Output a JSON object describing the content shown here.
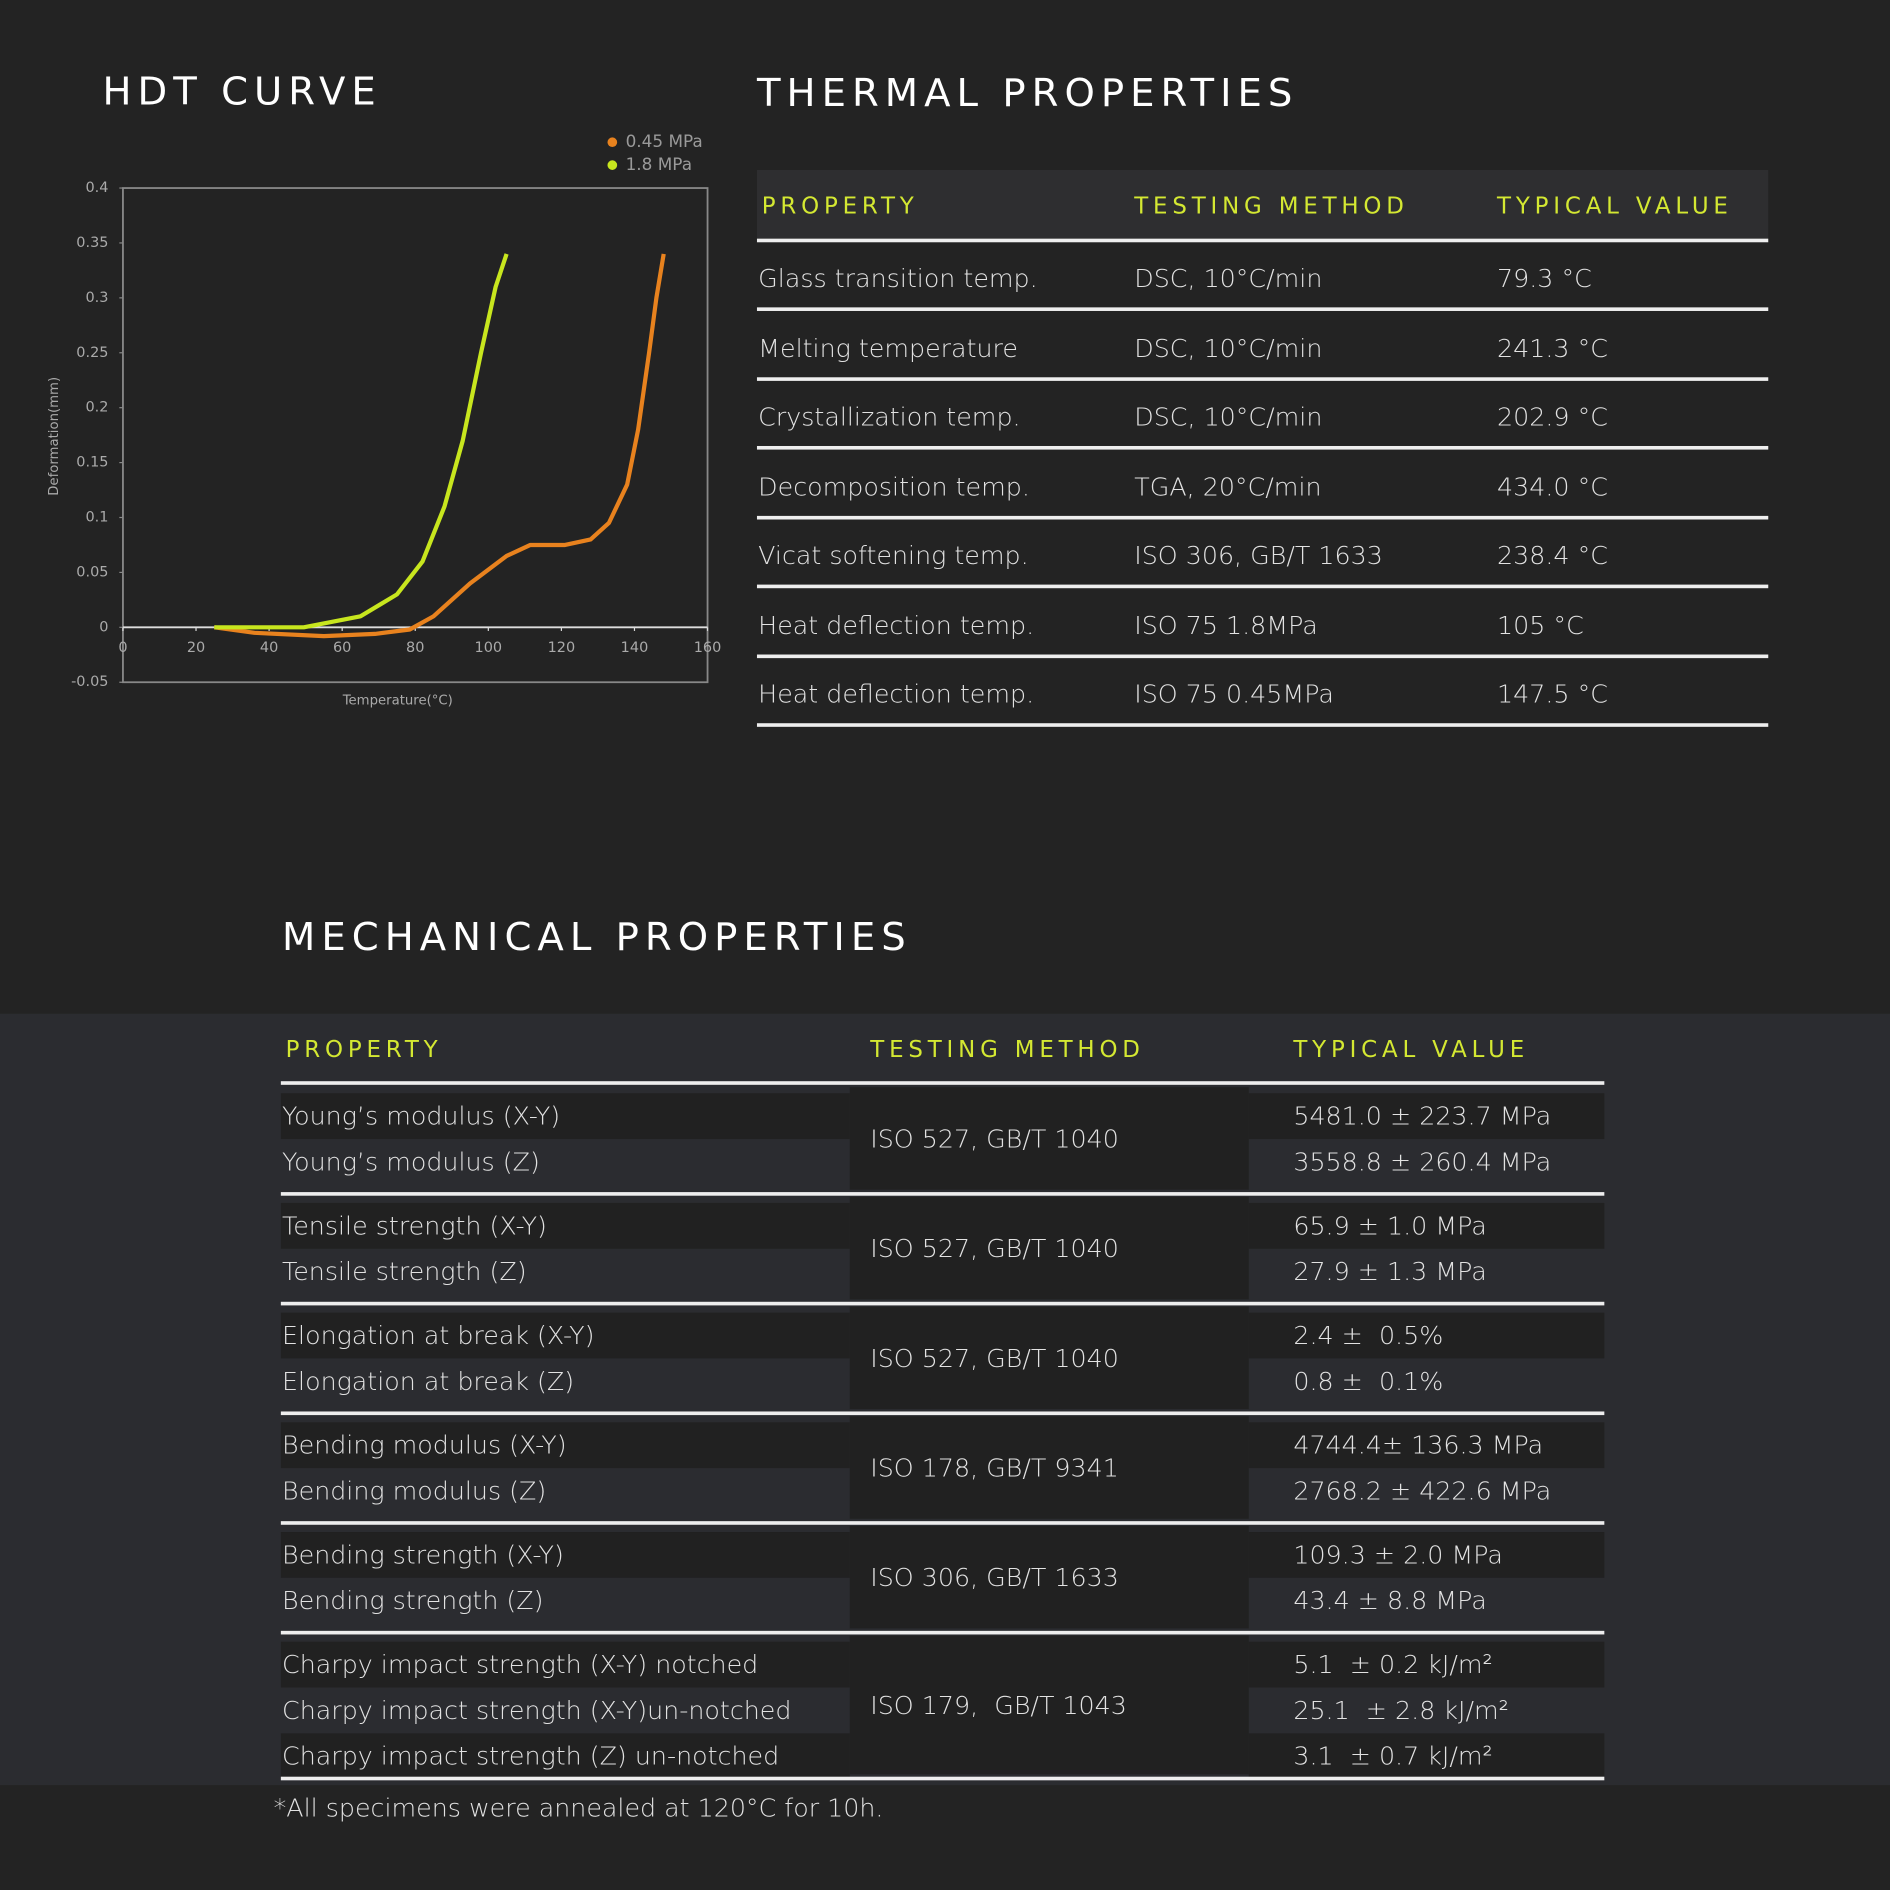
{
  "chart_data": {
    "type": "line",
    "title": "HDT CURVE",
    "x_label": "Temperature(°C)",
    "y_label": "Deformation(mm)",
    "xlim": [
      0,
      160
    ],
    "xticks": [
      0,
      20,
      40,
      60,
      80,
      100,
      120,
      140,
      160
    ],
    "ylim": [
      -0.05,
      0.4
    ],
    "yticks": [
      -0.05,
      0,
      0.05,
      0.1,
      0.15,
      0.2,
      0.25,
      0.3,
      0.35,
      0.4
    ],
    "grid": false,
    "legend": "top-right",
    "series": [
      {
        "name": "0.45 MPa",
        "color": "#e8821e",
        "x": [
          25,
          36,
          55,
          69,
          78.5,
          85,
          95,
          105,
          111.5,
          121,
          128,
          133,
          138,
          141,
          144,
          146,
          148
        ],
        "values": [
          0,
          -0.005,
          -0.008,
          -0.006,
          -0.002,
          0.01,
          0.04,
          0.065,
          0.075,
          0.075,
          0.08,
          0.095,
          0.13,
          0.18,
          0.25,
          0.3,
          0.34
        ]
      },
      {
        "name": "1.8 MPa",
        "color": "#c8e61e",
        "x": [
          25,
          49.5,
          65,
          75,
          82,
          88,
          93,
          98,
          102,
          105
        ],
        "values": [
          0,
          0,
          0.01,
          0.03,
          0.06,
          0.11,
          0.17,
          0.25,
          0.31,
          0.34
        ]
      }
    ]
  },
  "thermal_properties": {
    "title": "THERMAL PROPERTIES",
    "header": [
      "PROPERTY",
      "TESTING METHOD",
      "TYPICAL VALUE"
    ],
    "rows": [
      [
        "Glass transition temp.",
        "DSC, 10°C/min",
        "79.3 °C"
      ],
      [
        "Melting temperature",
        "DSC, 10°C/min",
        "241.3 °C"
      ],
      [
        "Crystallization temp.",
        "DSC, 10°C/min",
        "202.9 °C"
      ],
      [
        "Decomposition temp.",
        "TGA, 20°C/min",
        "434.0 °C"
      ],
      [
        "Vicat softening temp.",
        "ISO 306, GB/T 1633",
        "238.4 °C"
      ],
      [
        "Heat deflection temp.",
        "ISO 75 1.8MPa",
        "105 °C"
      ],
      [
        "Heat deflection temp.",
        "ISO 75 0.45MPa",
        "147.5 °C"
      ]
    ]
  },
  "mechanical_properties": {
    "title": "MECHANICAL PROPERTIES",
    "header": [
      "PROPERTY",
      "TESTING METHOD",
      "TYPICAL VALUE"
    ],
    "groups": [
      {
        "method": "ISO 527, GB/T 1040",
        "rows": [
          [
            "Young’s modulus (X-Y)",
            "5481.0 ± 223.7 MPa"
          ],
          [
            "Young’s modulus (Z)",
            "3558.8 ± 260.4 MPa"
          ]
        ]
      },
      {
        "method": "ISO 527, GB/T 1040",
        "rows": [
          [
            "Tensile strength (X-Y)",
            "65.9 ± 1.0 MPa"
          ],
          [
            "Tensile strength (Z)",
            "27.9 ± 1.3 MPa"
          ]
        ]
      },
      {
        "method": "ISO 527, GB/T 1040",
        "rows": [
          [
            "Elongation at break (X-Y)",
            "2.4 ±  0.5%"
          ],
          [
            "Elongation at break (Z)",
            "0.8 ±  0.1%"
          ]
        ]
      },
      {
        "method": "ISO 178, GB/T 9341",
        "rows": [
          [
            "Bending modulus (X-Y)",
            "4744.4± 136.3 MPa"
          ],
          [
            "Bending modulus (Z)",
            "2768.2 ± 422.6 MPa"
          ]
        ]
      },
      {
        "method": "ISO 306, GB/T 1633",
        "rows": [
          [
            "Bending strength (X-Y)",
            "109.3 ± 2.0 MPa"
          ],
          [
            "Bending strength (Z)",
            "43.4 ± 8.8 MPa"
          ]
        ]
      },
      {
        "method": "ISO 179,  GB/T 1043",
        "rows": [
          [
            "Charpy impact strength (X-Y) notched",
            "5.1  ± 0.2 kJ/m²"
          ],
          [
            "Charpy impact strength (X-Y)un-notched",
            "25.1  ± 2.8 kJ/m²"
          ],
          [
            "Charpy impact strength (Z) un-notched",
            "3.1  ± 0.7 kJ/m²"
          ]
        ]
      }
    ]
  },
  "footnote": "*All specimens were annealed at 120°C for 10h."
}
